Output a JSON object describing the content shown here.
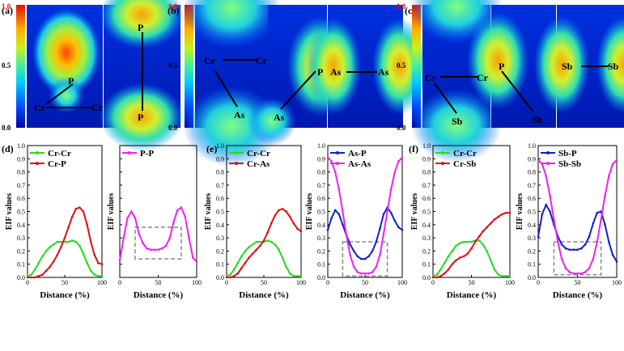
{
  "colorbar": {
    "max_label": "1.0",
    "mid_label": "0.5",
    "min_label": "0.0"
  },
  "heatmaps": [
    {
      "panel_label": "(a)",
      "labels": [
        "P",
        "Cr",
        "Cr",
        "P",
        "P"
      ]
    },
    {
      "panel_label": "(b)",
      "labels": [
        "Cr",
        "Cr",
        "As",
        "As",
        "P",
        "As",
        "As"
      ]
    },
    {
      "panel_label": "(c)",
      "labels": [
        "Cr",
        "Cr",
        "Sb",
        "P",
        "Sb",
        "Sb",
        "Sb"
      ]
    }
  ],
  "colors": {
    "green": "#22dd22",
    "red": "#e01010",
    "magenta": "#ee22ee",
    "blue": "#1020cc",
    "box": "#888888"
  },
  "chart_data": [
    {
      "type": "line",
      "panel_label": "(d)",
      "title": "",
      "xlabel": "Distance (%)",
      "ylabel": "EIF values",
      "xlim": [
        0,
        100
      ],
      "ylim": [
        0,
        1.0
      ],
      "xticks": [
        0,
        50,
        100
      ],
      "yticks": [
        0.0,
        0.1,
        0.2,
        0.3,
        0.4,
        0.5,
        0.6,
        0.7,
        0.8,
        0.9,
        1.0
      ],
      "show_yticklabels": true,
      "series": [
        {
          "name": "Cr-Cr",
          "color": "#22dd22",
          "x": [
            0,
            5,
            10,
            15,
            20,
            25,
            30,
            35,
            40,
            45,
            50,
            55,
            60,
            65,
            70,
            75,
            80,
            85,
            90,
            95,
            100
          ],
          "y": [
            0.01,
            0.02,
            0.06,
            0.11,
            0.16,
            0.2,
            0.23,
            0.25,
            0.27,
            0.27,
            0.27,
            0.27,
            0.28,
            0.27,
            0.24,
            0.18,
            0.11,
            0.05,
            0.02,
            0.01,
            0.01
          ]
        },
        {
          "name": "Cr-P",
          "color": "#e01010",
          "x": [
            0,
            5,
            10,
            15,
            20,
            25,
            30,
            35,
            40,
            45,
            50,
            55,
            60,
            65,
            70,
            75,
            80,
            85,
            90,
            95,
            100
          ],
          "y": [
            0.0,
            0.0,
            0.0,
            0.01,
            0.02,
            0.05,
            0.08,
            0.12,
            0.17,
            0.23,
            0.3,
            0.38,
            0.46,
            0.52,
            0.53,
            0.5,
            0.4,
            0.27,
            0.17,
            0.11,
            0.1
          ]
        }
      ]
    },
    {
      "type": "line",
      "panel_label": "",
      "title": "",
      "xlabel": "Distance (%)",
      "ylabel": "EIF values",
      "xlim": [
        0,
        100
      ],
      "ylim": [
        0,
        1.0
      ],
      "xticks": [
        0,
        50,
        100
      ],
      "yticks": [
        0.0,
        0.1,
        0.2,
        0.3,
        0.4,
        0.5,
        0.6,
        0.7,
        0.8,
        0.9,
        1.0
      ],
      "show_yticklabels": false,
      "highlight_box": {
        "x": [
          20,
          80
        ],
        "y": [
          0.14,
          0.38
        ]
      },
      "series": [
        {
          "name": "P-P",
          "color": "#ee22ee",
          "x": [
            0,
            5,
            10,
            15,
            20,
            25,
            30,
            35,
            40,
            45,
            50,
            55,
            60,
            65,
            70,
            75,
            80,
            85,
            90,
            95,
            100
          ],
          "y": [
            0.13,
            0.3,
            0.45,
            0.5,
            0.45,
            0.33,
            0.26,
            0.22,
            0.21,
            0.21,
            0.21,
            0.22,
            0.24,
            0.3,
            0.42,
            0.51,
            0.53,
            0.46,
            0.3,
            0.15,
            0.12
          ]
        }
      ]
    },
    {
      "type": "line",
      "panel_label": "(e)",
      "title": "",
      "xlabel": "Distance (%)",
      "ylabel": "EIF values",
      "xlim": [
        0,
        100
      ],
      "ylim": [
        0,
        1.0
      ],
      "xticks": [
        0,
        50,
        100
      ],
      "yticks": [
        0.0,
        0.1,
        0.2,
        0.3,
        0.4,
        0.5,
        0.6,
        0.7,
        0.8,
        0.9,
        1.0
      ],
      "show_yticklabels": true,
      "series": [
        {
          "name": "Cr-Cr",
          "color": "#22dd22",
          "x": [
            0,
            5,
            10,
            15,
            20,
            25,
            30,
            35,
            40,
            45,
            50,
            55,
            60,
            65,
            70,
            75,
            80,
            85,
            90,
            95,
            100
          ],
          "y": [
            0.01,
            0.02,
            0.06,
            0.11,
            0.16,
            0.2,
            0.23,
            0.25,
            0.27,
            0.27,
            0.27,
            0.28,
            0.27,
            0.25,
            0.21,
            0.15,
            0.08,
            0.03,
            0.01,
            0.01,
            0.01
          ]
        },
        {
          "name": "Cr-As",
          "color": "#e01010",
          "x": [
            0,
            5,
            10,
            15,
            20,
            25,
            30,
            35,
            40,
            45,
            50,
            55,
            60,
            65,
            70,
            75,
            80,
            85,
            90,
            95,
            100
          ],
          "y": [
            0.0,
            0.0,
            0.01,
            0.03,
            0.07,
            0.11,
            0.15,
            0.18,
            0.21,
            0.24,
            0.28,
            0.34,
            0.41,
            0.47,
            0.51,
            0.52,
            0.5,
            0.46,
            0.41,
            0.37,
            0.35
          ]
        }
      ]
    },
    {
      "type": "line",
      "panel_label": "",
      "title": "",
      "xlabel": "Distance (%)",
      "ylabel": "EIF values",
      "xlim": [
        0,
        100
      ],
      "ylim": [
        0,
        1.0
      ],
      "xticks": [
        0,
        50,
        100
      ],
      "yticks": [
        0.0,
        0.1,
        0.2,
        0.3,
        0.4,
        0.5,
        0.6,
        0.7,
        0.8,
        0.9,
        1.0
      ],
      "show_yticklabels": true,
      "highlight_box": {
        "x": [
          20,
          80
        ],
        "y": [
          0.01,
          0.27
        ]
      },
      "series": [
        {
          "name": "As-P",
          "color": "#1020cc",
          "x": [
            0,
            5,
            10,
            15,
            20,
            25,
            30,
            35,
            40,
            45,
            50,
            55,
            60,
            65,
            70,
            75,
            80,
            85,
            90,
            95,
            100
          ],
          "y": [
            0.36,
            0.45,
            0.51,
            0.48,
            0.4,
            0.32,
            0.25,
            0.2,
            0.16,
            0.14,
            0.14,
            0.16,
            0.2,
            0.27,
            0.37,
            0.48,
            0.53,
            0.49,
            0.43,
            0.38,
            0.36
          ]
        },
        {
          "name": "As-As",
          "color": "#ee22ee",
          "x": [
            0,
            5,
            10,
            15,
            20,
            25,
            30,
            35,
            40,
            45,
            50,
            55,
            60,
            65,
            70,
            75,
            80,
            85,
            90,
            95,
            100
          ],
          "y": [
            0.91,
            0.88,
            0.8,
            0.67,
            0.5,
            0.32,
            0.17,
            0.08,
            0.04,
            0.03,
            0.03,
            0.03,
            0.04,
            0.08,
            0.17,
            0.33,
            0.5,
            0.67,
            0.8,
            0.88,
            0.91
          ]
        }
      ]
    },
    {
      "type": "line",
      "panel_label": "(f)",
      "title": "",
      "xlabel": "Distance (%)",
      "ylabel": "EIF values",
      "xlim": [
        0,
        100
      ],
      "ylim": [
        0,
        1.0
      ],
      "xticks": [
        0,
        50,
        100
      ],
      "yticks": [
        0.0,
        0.1,
        0.2,
        0.3,
        0.4,
        0.5,
        0.6,
        0.7,
        0.8,
        0.9,
        1.0
      ],
      "show_yticklabels": true,
      "series": [
        {
          "name": "Cr-Cr",
          "color": "#22dd22",
          "x": [
            0,
            5,
            10,
            15,
            20,
            25,
            30,
            35,
            40,
            45,
            50,
            55,
            60,
            65,
            70,
            75,
            80,
            85,
            90,
            95,
            100
          ],
          "y": [
            0.01,
            0.02,
            0.06,
            0.11,
            0.16,
            0.2,
            0.24,
            0.26,
            0.27,
            0.27,
            0.27,
            0.28,
            0.28,
            0.25,
            0.2,
            0.13,
            0.06,
            0.02,
            0.01,
            0.01,
            0.01
          ]
        },
        {
          "name": "Cr-Sb",
          "color": "#e01010",
          "x": [
            0,
            5,
            10,
            15,
            20,
            25,
            30,
            35,
            40,
            45,
            50,
            55,
            60,
            65,
            70,
            75,
            80,
            85,
            90,
            95,
            100
          ],
          "y": [
            0.0,
            0.0,
            0.01,
            0.03,
            0.06,
            0.1,
            0.13,
            0.15,
            0.16,
            0.18,
            0.22,
            0.27,
            0.31,
            0.35,
            0.38,
            0.41,
            0.44,
            0.46,
            0.48,
            0.49,
            0.49
          ]
        }
      ]
    },
    {
      "type": "line",
      "panel_label": "",
      "title": "",
      "xlabel": "Distance (%)",
      "ylabel": "EIF values",
      "xlim": [
        0,
        100
      ],
      "ylim": [
        0,
        1.0
      ],
      "xticks": [
        0,
        50,
        100
      ],
      "yticks": [
        0.0,
        0.1,
        0.2,
        0.3,
        0.4,
        0.5,
        0.6,
        0.7,
        0.8,
        0.9,
        1.0
      ],
      "show_yticklabels": true,
      "highlight_box": {
        "x": [
          20,
          80
        ],
        "y": [
          0.02,
          0.27
        ]
      },
      "series": [
        {
          "name": "Sb-P",
          "color": "#1020cc",
          "x": [
            0,
            5,
            10,
            15,
            20,
            25,
            30,
            35,
            40,
            45,
            50,
            55,
            60,
            65,
            70,
            75,
            80,
            85,
            90,
            95,
            100
          ],
          "y": [
            0.31,
            0.48,
            0.55,
            0.5,
            0.4,
            0.31,
            0.25,
            0.22,
            0.21,
            0.21,
            0.21,
            0.22,
            0.25,
            0.31,
            0.41,
            0.49,
            0.5,
            0.4,
            0.27,
            0.17,
            0.12
          ]
        },
        {
          "name": "Sb-Sb",
          "color": "#ee22ee",
          "x": [
            0,
            5,
            10,
            15,
            20,
            25,
            30,
            35,
            40,
            45,
            50,
            55,
            60,
            65,
            70,
            75,
            80,
            85,
            90,
            95,
            100
          ],
          "y": [
            0.89,
            0.86,
            0.77,
            0.62,
            0.44,
            0.27,
            0.14,
            0.07,
            0.04,
            0.03,
            0.03,
            0.03,
            0.04,
            0.07,
            0.14,
            0.27,
            0.44,
            0.62,
            0.77,
            0.86,
            0.89
          ]
        }
      ]
    }
  ]
}
